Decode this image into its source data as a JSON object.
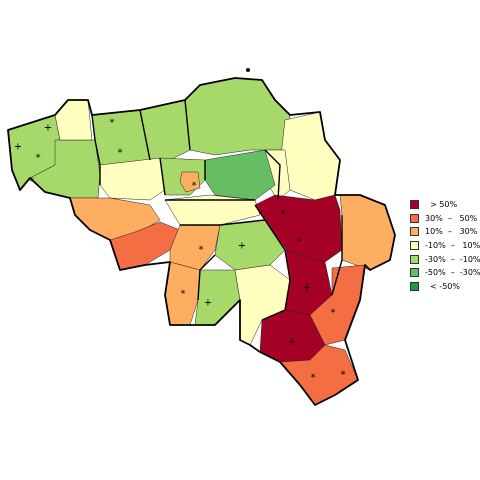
{
  "colors": {
    "gt50": "#a50026",
    "p30_50": "#f46d43",
    "p10_30": "#fdae61",
    "m10_10": "#ffffbf",
    "m30_m10": "#a6d96a",
    "m50_m30": "#66bd63",
    "lt_m50": "#1a9850"
  },
  "legend": [
    {
      "key": "gt50",
      "label": "  > 50%"
    },
    {
      "key": "p30_50",
      "label": "30%  –   50%"
    },
    {
      "key": "p10_30",
      "label": "10%  –   30%"
    },
    {
      "key": "m10_10",
      "label": "-10%  –   10%"
    },
    {
      "key": "m30_m10",
      "label": "-30%  –  -10%"
    },
    {
      "key": "m50_m30",
      "label": "-50%  –  -30%"
    },
    {
      "key": "lt_m50",
      "label": "  < -50%"
    }
  ],
  "markers": {
    "plus": "+",
    "star": "*"
  }
}
